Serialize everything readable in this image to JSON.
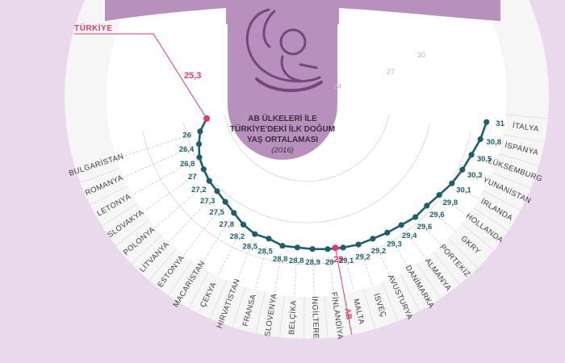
{
  "chart_data": {
    "type": "radial-line",
    "title_lines": [
      "AB ÜLKELERİ İLE",
      "TÜRKİYE'DEKİ İLK DOĞUM",
      "YAŞ ORTALAMASI"
    ],
    "year": "(2016)",
    "scale_labels": [
      "24",
      "27",
      "30"
    ],
    "r_range": [
      22,
      31
    ],
    "categories": [
      "BULGARİSTAN",
      "ROMANYA",
      "LETONYA",
      "SLOVAKYA",
      "POLONYA",
      "LİTVANYA",
      "ESTONYA",
      "MACARİSTAN",
      "ÇEKYA",
      "HIRVATİSTAN",
      "FRANSA",
      "SLOVENYA",
      "BELÇİKA",
      "İNGİLTERE",
      "FİNLANDİYA",
      "MALTA",
      "İSVEÇ",
      "AVUSTURYA",
      "DANİMARKA",
      "ALMANYA",
      "PORTEKİZ",
      "GKRY",
      "HOLLANDA",
      "İRLANDA",
      "YUNANİSTAN",
      "LÜKSEMBURG",
      "İSPANYA",
      "İTALYA"
    ],
    "values": [
      26,
      26.4,
      26.8,
      27,
      27.2,
      27.3,
      27.5,
      27.8,
      28.2,
      28.5,
      28.5,
      28.8,
      28.8,
      28.9,
      29,
      29.1,
      29.2,
      29.2,
      29.3,
      29.4,
      29.6,
      29.6,
      29.8,
      30.1,
      30.3,
      30.5,
      30.8,
      31
    ],
    "value_labels": [
      "26",
      "26,4",
      "26,8",
      "27",
      "27,2",
      "27,3",
      "27,5",
      "27,8",
      "28,2",
      "28,5",
      "28,5",
      "28,8",
      "28,8",
      "28,9",
      "29",
      "29,1",
      "29,2",
      "29,2",
      "29,3",
      "29,4",
      "29,6",
      "29,6",
      "29,8",
      "30,1",
      "30,3",
      "30,5",
      "30,8",
      "31"
    ],
    "highlights": [
      {
        "name": "TÜRKİYE",
        "value": 25.3,
        "value_label": "25,3"
      },
      {
        "name": "AB",
        "value": 29,
        "value_label": "29"
      }
    ],
    "colors": {
      "line": "#1f5e6d",
      "highlight": "#e2396b",
      "background": "#ead9ec",
      "band": "#f6f6f6",
      "panel": "#b890bd",
      "center": "#ffffff"
    }
  }
}
